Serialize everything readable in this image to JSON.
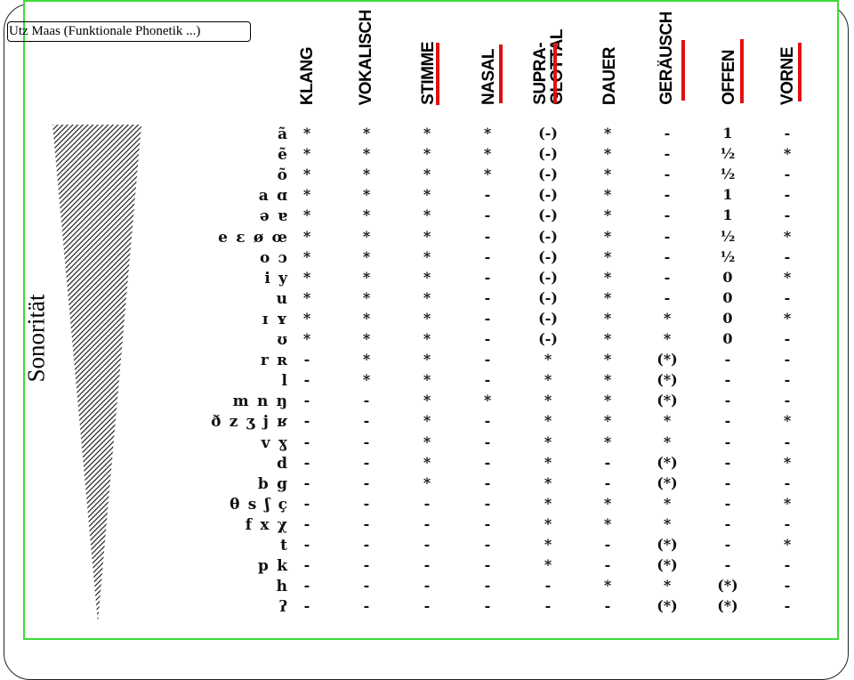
{
  "credit": "Utz Maas (Funktionale Phonetik ...)",
  "side_label": "Sonorität",
  "columns": [
    "KLANG",
    "VOKALISCH",
    "STIMME",
    "NASAL",
    "SUPRA-\nGLOTTAL",
    "DAUER",
    "GERÄUSCH",
    "OFFEN",
    "VORNE"
  ],
  "marked_columns": [
    "STIMME",
    "NASAL",
    "SUPRA-GLOTTAL",
    "GERÄUSCH",
    "OFFEN",
    "VORNE"
  ],
  "accent_color": "#e01010",
  "frame_color": "#3bdc3b",
  "rows": [
    {
      "sym": "ã",
      "v": [
        "*",
        "*",
        "*",
        "*",
        "(-)",
        "*",
        "-",
        "1",
        "-"
      ]
    },
    {
      "sym": "ẽ",
      "v": [
        "*",
        "*",
        "*",
        "*",
        "(-)",
        "*",
        "-",
        "½",
        "*"
      ]
    },
    {
      "sym": "õ",
      "v": [
        "*",
        "*",
        "*",
        "*",
        "(-)",
        "*",
        "-",
        "½",
        "-"
      ]
    },
    {
      "sym": "a ɑ",
      "v": [
        "*",
        "*",
        "*",
        "-",
        "(-)",
        "*",
        "-",
        "1",
        "-"
      ]
    },
    {
      "sym": "ə ɐ",
      "v": [
        "*",
        "*",
        "*",
        "-",
        "(-)",
        "*",
        "-",
        "1",
        "-"
      ]
    },
    {
      "sym": "e ɛ ø œ",
      "v": [
        "*",
        "*",
        "*",
        "-",
        "(-)",
        "*",
        "-",
        "½",
        "*"
      ]
    },
    {
      "sym": "o ɔ",
      "v": [
        "*",
        "*",
        "*",
        "-",
        "(-)",
        "*",
        "-",
        "½",
        "-"
      ]
    },
    {
      "sym": "i y",
      "v": [
        "*",
        "*",
        "*",
        "-",
        "(-)",
        "*",
        "-",
        "0",
        "*"
      ]
    },
    {
      "sym": "u",
      "v": [
        "*",
        "*",
        "*",
        "-",
        "(-)",
        "*",
        "-",
        "0",
        "-"
      ]
    },
    {
      "sym": "ɪ ʏ",
      "v": [
        "*",
        "*",
        "*",
        "-",
        "(-)",
        "*",
        "*",
        "0",
        "*"
      ]
    },
    {
      "sym": "ʊ",
      "v": [
        "*",
        "*",
        "*",
        "-",
        "(-)",
        "*",
        "*",
        "0",
        "-"
      ]
    },
    {
      "sym": "r ʀ",
      "v": [
        "-",
        "*",
        "*",
        "-",
        "*",
        "*",
        "(*)",
        "-",
        "-"
      ]
    },
    {
      "sym": "l",
      "v": [
        "-",
        "*",
        "*",
        "-",
        "*",
        "*",
        "(*)",
        "-",
        "-"
      ]
    },
    {
      "sym": "m n ŋ",
      "v": [
        "-",
        "-",
        "*",
        "*",
        "*",
        "*",
        "(*)",
        "-",
        "-"
      ]
    },
    {
      "sym": "ð z ʒ j ʁ",
      "v": [
        "-",
        "-",
        "*",
        "-",
        "*",
        "*",
        "*",
        "-",
        "*"
      ]
    },
    {
      "sym": "v ɣ",
      "v": [
        "-",
        "-",
        "*",
        "-",
        "*",
        "*",
        "*",
        "-",
        "-"
      ]
    },
    {
      "sym": "d",
      "v": [
        "-",
        "-",
        "*",
        "-",
        "*",
        "-",
        "(*)",
        "-",
        "*"
      ]
    },
    {
      "sym": "b g",
      "v": [
        "-",
        "-",
        "*",
        "-",
        "*",
        "-",
        "(*)",
        "-",
        "-"
      ]
    },
    {
      "sym": "θ s ʃ ç",
      "v": [
        "-",
        "-",
        "-",
        "-",
        "*",
        "*",
        "*",
        "-",
        "*"
      ]
    },
    {
      "sym": "f x χ",
      "v": [
        "-",
        "-",
        "-",
        "-",
        "*",
        "*",
        "*",
        "-",
        "-"
      ]
    },
    {
      "sym": "t",
      "v": [
        "-",
        "-",
        "-",
        "-",
        "*",
        "-",
        "(*)",
        "-",
        "*"
      ]
    },
    {
      "sym": "p k",
      "v": [
        "-",
        "-",
        "-",
        "-",
        "*",
        "-",
        "(*)",
        "-",
        "-"
      ]
    },
    {
      "sym": "h",
      "v": [
        "-",
        "-",
        "-",
        "-",
        "-",
        "*",
        "*",
        "(*)",
        "-"
      ]
    },
    {
      "sym": "ʔ",
      "v": [
        "-",
        "-",
        "-",
        "-",
        "-",
        "-",
        "(*)",
        "(*)",
        "-"
      ]
    }
  ]
}
